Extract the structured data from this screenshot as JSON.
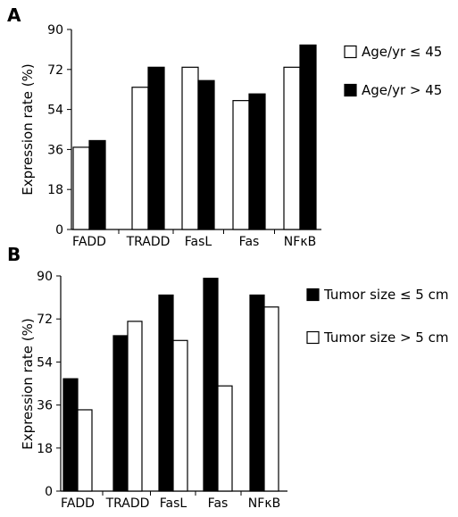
{
  "figure": {
    "panels": [
      "A",
      "B"
    ]
  },
  "chart_data": [
    {
      "type": "bar",
      "panel": "A",
      "ylabel": "Expression rate (%)",
      "ylim": [
        0,
        90
      ],
      "yticks": [
        "0",
        "18",
        "36",
        "54",
        "72",
        "90"
      ],
      "categories": [
        "FADD",
        "TRADD",
        "FasL",
        "Fas",
        "NFκB"
      ],
      "series": [
        {
          "name": "Age/yr ≤ 45",
          "color": "#ffffff",
          "values": [
            37,
            64,
            73,
            58,
            73
          ]
        },
        {
          "name": "Age/yr > 45",
          "color": "#000000",
          "values": [
            40,
            73,
            67,
            61,
            83
          ]
        }
      ],
      "legend": "right",
      "grid": false
    },
    {
      "type": "bar",
      "panel": "B",
      "ylabel": "Expression rate (%)",
      "ylim": [
        0,
        90
      ],
      "yticks": [
        "0",
        "18",
        "36",
        "54",
        "72",
        "90"
      ],
      "categories": [
        "FADD",
        "TRADD",
        "FasL",
        "Fas",
        "NFκB"
      ],
      "series": [
        {
          "name": "Tumor size ≤ 5 cm",
          "color": "#000000",
          "values": [
            47,
            65,
            82,
            89,
            82
          ]
        },
        {
          "name": "Tumor size > 5 cm",
          "color": "#ffffff",
          "values": [
            34,
            71,
            63,
            44,
            77
          ]
        }
      ],
      "legend": "right",
      "grid": false
    }
  ]
}
